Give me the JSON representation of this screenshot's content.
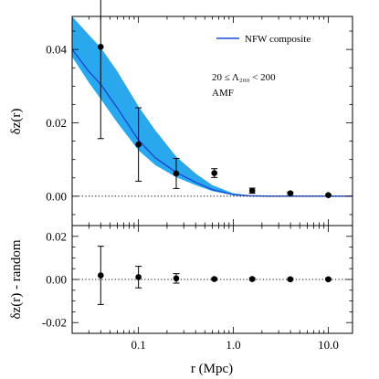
{
  "chart_data": [
    {
      "type": "line",
      "panel": "top",
      "xscale": "log",
      "xlim": [
        0.02,
        18
      ],
      "ylim": [
        -0.008,
        0.049
      ],
      "ylabel": "δz(r)",
      "yticks": [
        0.0,
        0.02,
        0.04
      ],
      "ytick_labels": [
        "0.00",
        "0.02",
        "0.04"
      ],
      "legend": {
        "position": "top-right",
        "label": "NFW composite",
        "color": "#1a4bd6"
      },
      "annotation_lines": [
        "20 ≤ Λ₂₀₀ < 200",
        "AMF"
      ],
      "zero_line": 0,
      "model": {
        "name": "NFW composite",
        "x": [
          0.02,
          0.03,
          0.04,
          0.06,
          0.1,
          0.15,
          0.25,
          0.4,
          0.6,
          1.0,
          1.5,
          2.5,
          4.0,
          10.0,
          18.0
        ],
        "y": [
          0.04,
          0.034,
          0.0305,
          0.024,
          0.0153,
          0.0105,
          0.0065,
          0.0038,
          0.0018,
          0.0004,
          0.0001,
          0.0,
          0.0,
          0.0,
          0.0
        ],
        "band_upper": [
          0.049,
          0.044,
          0.0405,
          0.034,
          0.0245,
          0.018,
          0.0108,
          0.0062,
          0.003,
          0.0008,
          0.0002,
          0.0,
          0.0,
          0.0,
          0.0
        ],
        "band_lower": [
          0.038,
          0.031,
          0.0265,
          0.02,
          0.0125,
          0.0085,
          0.0052,
          0.003,
          0.0014,
          0.0003,
          0.0001,
          0.0,
          0.0,
          0.0,
          0.0
        ],
        "line_color": "#1a4bd6",
        "band_color": "#29a8ee"
      },
      "points": {
        "x": [
          0.04,
          0.1,
          0.25,
          0.63,
          1.58,
          3.98,
          10.0
        ],
        "y": [
          0.0407,
          0.0141,
          0.0062,
          0.0063,
          0.0015,
          0.0008,
          0.0003
        ],
        "yerr": [
          0.025,
          0.01,
          0.0041,
          0.0012,
          0.0007,
          0.0003,
          0.0002
        ]
      }
    },
    {
      "type": "scatter",
      "panel": "bottom",
      "xscale": "log",
      "xlim": [
        0.02,
        18
      ],
      "ylim": [
        -0.025,
        0.025
      ],
      "xlabel": "r (Mpc)",
      "ylabel": "δz(r) - random",
      "xticks": [
        0.1,
        1.0,
        10.0
      ],
      "xtick_labels": [
        "0.1",
        "1.0",
        "10.0"
      ],
      "yticks": [
        -0.02,
        0.0,
        0.02
      ],
      "ytick_labels": [
        "-0.02",
        "0.00",
        "0.02"
      ],
      "zero_line": 0,
      "points": {
        "x": [
          0.04,
          0.1,
          0.25,
          0.63,
          1.58,
          3.98,
          10.0
        ],
        "y": [
          0.0019,
          0.0011,
          0.0005,
          0.0002,
          0.0002,
          0.0001,
          0.0001
        ],
        "yerr": [
          0.0135,
          0.005,
          0.0022,
          0.0005,
          0.0005,
          0.0004,
          0.0004
        ]
      }
    }
  ]
}
